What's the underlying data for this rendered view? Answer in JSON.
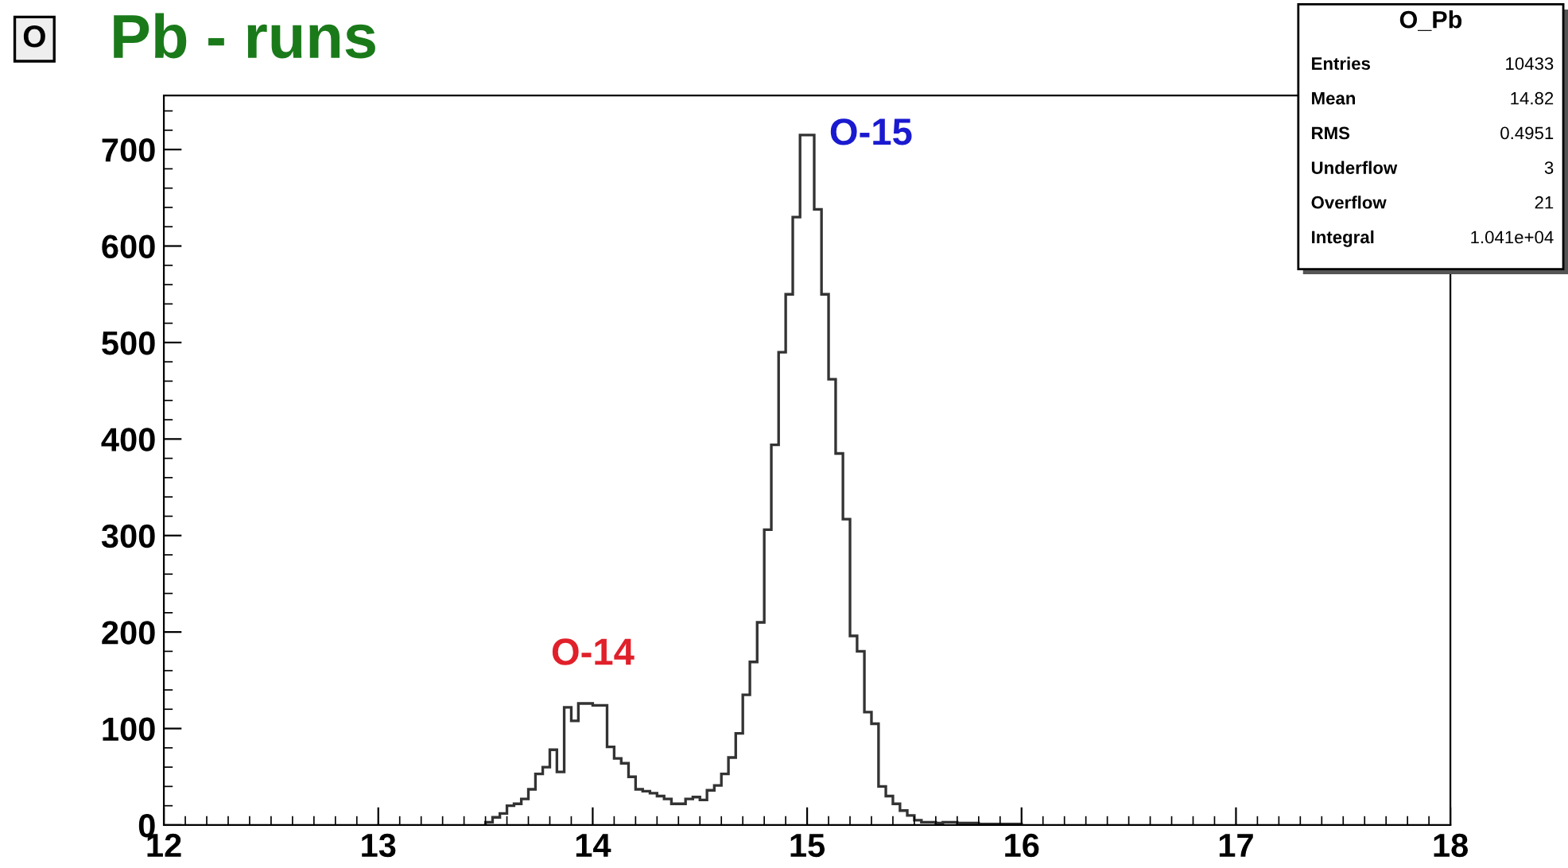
{
  "chart_data": {
    "type": "histogram",
    "title": "Pb - runs",
    "bins": [
      13.5,
      13.533,
      13.567,
      13.6,
      13.633,
      13.667,
      13.7,
      13.733,
      13.767,
      13.8,
      13.833,
      13.867,
      13.9,
      13.933,
      13.967,
      14.0,
      14.033,
      14.067,
      14.1,
      14.133,
      14.167,
      14.2,
      14.233,
      14.267,
      14.3,
      14.333,
      14.367,
      14.4,
      14.433,
      14.467,
      14.5,
      14.533,
      14.567,
      14.6,
      14.633,
      14.667,
      14.7,
      14.733,
      14.767,
      14.8,
      14.833,
      14.867,
      14.9,
      14.933,
      14.967,
      15.0,
      15.033,
      15.067,
      15.1,
      15.133,
      15.167,
      15.2,
      15.233,
      15.267,
      15.3,
      15.333,
      15.367,
      15.4,
      15.433,
      15.467,
      15.5,
      15.533,
      15.567,
      15.6,
      15.633,
      15.667,
      15.7,
      15.733,
      15.767,
      15.8,
      15.833,
      15.867,
      15.9,
      15.933,
      15.967,
      16.0
    ],
    "values": [
      3,
      8,
      12,
      20,
      22,
      27,
      37,
      53,
      60,
      78,
      55,
      122,
      108,
      126,
      126,
      124,
      124,
      81,
      69,
      64,
      50,
      37,
      35,
      33,
      30,
      27,
      22,
      22,
      27,
      29,
      26,
      36,
      41,
      53,
      70,
      95,
      135,
      169,
      210,
      306,
      394,
      490,
      550,
      630,
      715,
      715,
      638,
      550,
      462,
      385,
      317,
      196,
      180,
      117,
      105,
      40,
      30,
      22,
      15,
      10,
      5,
      3,
      3,
      2,
      3,
      3,
      2,
      2,
      2,
      1,
      1,
      1,
      1,
      1,
      1
    ],
    "color": "#333333",
    "xlim": [
      12,
      18
    ],
    "xticks": [
      12,
      13,
      14,
      15,
      16,
      17,
      18
    ],
    "ylim": [
      0,
      756
    ],
    "yticks": [
      0,
      100,
      200,
      300,
      400,
      500,
      600,
      700
    ],
    "annotations": [
      "O",
      {
        "text": "O-14",
        "x": 14.0,
        "y": 126
      },
      {
        "text": "O-15",
        "x": 15.0,
        "y": 715
      },
      "O_Pb",
      "Entries",
      "10433",
      "Mean",
      "14.82",
      "RMS",
      "0.4951",
      "Underflow",
      "3",
      "Overflow",
      "21",
      "Integral",
      "1.041e+04"
    ]
  }
}
